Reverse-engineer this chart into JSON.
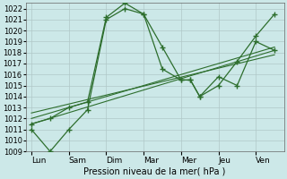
{
  "xlabel": "Pression niveau de la mer( hPa )",
  "xtick_labels": [
    "Lun",
    "Sam",
    "Dim",
    "Mar",
    "Mer",
    "Jeu",
    "Ven"
  ],
  "xtick_positions": [
    0,
    2,
    4,
    6,
    8,
    10,
    12
  ],
  "ylim": [
    1009,
    1022.5
  ],
  "yticks": [
    1009,
    1010,
    1011,
    1012,
    1013,
    1014,
    1015,
    1016,
    1017,
    1018,
    1019,
    1020,
    1021,
    1022
  ],
  "xlim": [
    -0.3,
    13.5
  ],
  "background_color": "#cce8e8",
  "grid_color": "#b0c8c8",
  "line_color": "#2d6e2d",
  "series1": {
    "x": [
      0,
      1,
      2,
      3,
      4,
      5,
      6,
      7,
      8,
      8.5,
      9,
      10,
      11,
      12,
      13
    ],
    "y": [
      1011,
      1009,
      1011,
      1012.8,
      1021,
      1022,
      1021.5,
      1018.5,
      1015.5,
      1015.5,
      1014,
      1015.8,
      1015,
      1019,
      1018.2
    ]
  },
  "series2": {
    "x": [
      0,
      1,
      2,
      3,
      4,
      5,
      6,
      7,
      8,
      8.5,
      9,
      10,
      11,
      12,
      13
    ],
    "y": [
      1011.5,
      1012,
      1013,
      1013.5,
      1021.2,
      1022.5,
      1021.5,
      1016.5,
      1015.5,
      1015.5,
      1014,
      1015,
      1017.2,
      1019.5,
      1021.5
    ]
  },
  "trend_lines": [
    {
      "x": [
        0,
        13
      ],
      "y": [
        1011.5,
        1018.2
      ]
    },
    {
      "x": [
        0,
        13
      ],
      "y": [
        1012.0,
        1018.5
      ]
    },
    {
      "x": [
        0,
        13
      ],
      "y": [
        1012.5,
        1017.8
      ]
    }
  ]
}
